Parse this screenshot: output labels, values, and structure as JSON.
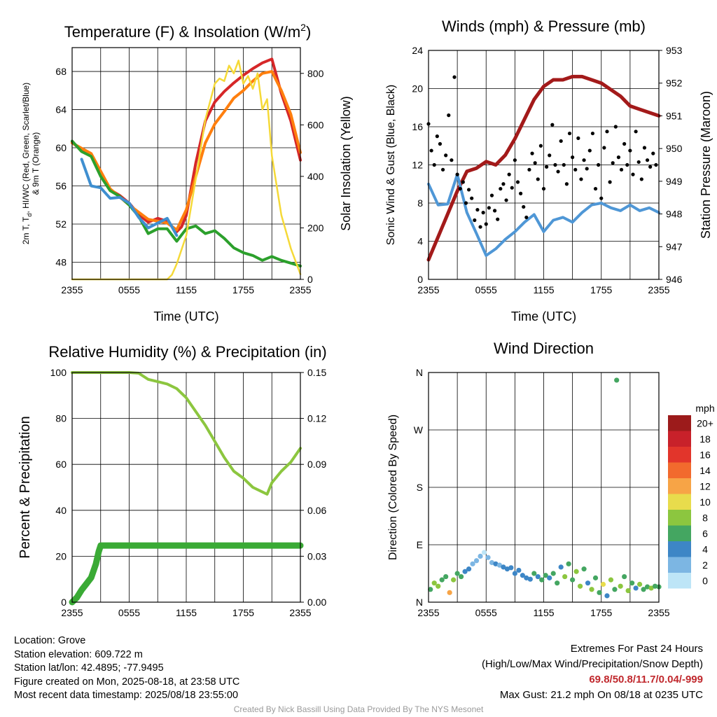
{
  "chart_data": [
    {
      "type": "line",
      "title": "Temperature (F) & Insolation (W/m",
      "title_sup": "2",
      "title_end": ")",
      "xlabel": "Time (UTC)",
      "ylabel_lines": [
        "2m T, T",
        "d",
        ", HI/WC (Red, Green, Scarlet/Blue)",
        "& 9m T (Orange)"
      ],
      "y2label": "Solar Insolation (Yellow)",
      "xtick_labels": [
        "2355",
        "0555",
        "1155",
        "1755",
        "2355"
      ],
      "x_range_hours": [
        0,
        24
      ],
      "ylim": [
        46.2,
        70.5
      ],
      "yticks": [
        48,
        52,
        56,
        60,
        64,
        68
      ],
      "y2lim": [
        0,
        900
      ],
      "y2ticks": [
        0,
        200,
        400,
        600,
        800
      ],
      "grid": true,
      "series": [
        {
          "color": "#d62728",
          "axis": "left",
          "x": [
            0,
            1,
            2,
            3,
            4,
            5,
            6,
            7,
            8,
            9,
            10,
            11,
            11.5,
            12,
            13,
            14,
            15,
            16,
            17,
            18,
            19,
            20,
            21,
            22,
            23,
            24
          ],
          "y": [
            60.6,
            59.7,
            59.3,
            57.2,
            55.6,
            55.0,
            54.2,
            53.0,
            52.2,
            52.6,
            52.3,
            51.2,
            51.7,
            52.9,
            58.4,
            62.8,
            64.8,
            65.9,
            66.8,
            67.6,
            68.3,
            68.9,
            69.3,
            65.7,
            62.8,
            58.7
          ]
        },
        {
          "color": "#ff7f0e",
          "axis": "left",
          "x": [
            0,
            2,
            4,
            6,
            8,
            10,
            11,
            12,
            13,
            14,
            15,
            16,
            17,
            18,
            19,
            20,
            21,
            22,
            23,
            24
          ],
          "y": [
            60.5,
            59.4,
            55.7,
            54.0,
            52.5,
            52.1,
            51.4,
            53.5,
            57.0,
            60.5,
            62.5,
            63.8,
            65.2,
            66.0,
            67.0,
            67.8,
            68.0,
            66.0,
            63.5,
            59.5
          ]
        },
        {
          "color": "#2ca02c",
          "axis": "left",
          "x": [
            0,
            1,
            2,
            3,
            4,
            5,
            6,
            7,
            8,
            9,
            10,
            11,
            12,
            13,
            14,
            15,
            16,
            17,
            18,
            19,
            20,
            21,
            22,
            23,
            24
          ],
          "y": [
            60.7,
            59.6,
            59.1,
            57.0,
            55.5,
            54.9,
            54.0,
            52.8,
            51.0,
            51.5,
            51.5,
            50.2,
            51.5,
            51.8,
            51.0,
            51.3,
            50.5,
            49.5,
            49.0,
            48.7,
            48.2,
            48.6,
            48.2,
            47.9,
            47.6
          ]
        },
        {
          "color": "#3f8fd0",
          "axis": "left",
          "x": [
            1,
            2,
            3,
            4,
            5,
            6,
            7,
            8,
            9,
            10,
            11
          ],
          "y": [
            58.8,
            56.0,
            55.8,
            54.7,
            54.8,
            54.2,
            52.7,
            51.6,
            52.1,
            52.6,
            50.8
          ]
        },
        {
          "color": "#f5d938",
          "axis": "right",
          "x": [
            0,
            8,
            9,
            10,
            10.5,
            11,
            12,
            13,
            14,
            15,
            15.5,
            16,
            16.5,
            17,
            17.5,
            18,
            18.5,
            19,
            19.5,
            20,
            20.5,
            21,
            22,
            23,
            24
          ],
          "y": [
            0,
            0,
            0,
            0,
            18,
            60,
            170,
            390,
            620,
            760,
            780,
            770,
            830,
            800,
            850,
            760,
            790,
            740,
            800,
            660,
            700,
            480,
            250,
            120,
            20
          ]
        }
      ]
    },
    {
      "type": "scatter",
      "title": "Winds (mph) & Pressure (mb)",
      "xlabel": "Time (UTC)",
      "ylabel": "Sonic Wind & Gust (Blue, Black)",
      "y2label": "Station Pressure (Maroon)",
      "xtick_labels": [
        "2355",
        "0555",
        "1155",
        "1755",
        "2355"
      ],
      "x_range_hours": [
        0,
        24
      ],
      "ylim": [
        0,
        24
      ],
      "yticks": [
        0,
        4,
        8,
        12,
        16,
        20,
        24
      ],
      "y2lim": [
        946,
        953
      ],
      "y2ticks": [
        946,
        947,
        948,
        949,
        950,
        951,
        952,
        953
      ],
      "grid": true,
      "series": [
        {
          "color": "#a31a1a",
          "axis": "right",
          "type": "line",
          "x": [
            0,
            1,
            2,
            3,
            4,
            5,
            6,
            7,
            8,
            9,
            10,
            11,
            12,
            13,
            14,
            15,
            16,
            17,
            18,
            19,
            20,
            21,
            22,
            23,
            24
          ],
          "y": [
            946.6,
            947.3,
            948.0,
            948.7,
            949.3,
            949.4,
            949.6,
            949.5,
            949.8,
            950.3,
            950.9,
            951.5,
            951.9,
            952.1,
            952.1,
            952.2,
            952.2,
            952.1,
            952.0,
            951.8,
            951.6,
            951.3,
            951.2,
            951.1,
            951.0
          ]
        },
        {
          "color": "#4f97d6",
          "axis": "left",
          "type": "line",
          "x": [
            0,
            1,
            2,
            3,
            4,
            5,
            6,
            7,
            8,
            9,
            10,
            11,
            12,
            13,
            14,
            15,
            16,
            17,
            18,
            19,
            20,
            21,
            22,
            23,
            24
          ],
          "y": [
            10.0,
            7.8,
            7.9,
            11.0,
            7.0,
            4.8,
            2.5,
            3.2,
            4.2,
            5.0,
            6.0,
            6.8,
            5.0,
            6.2,
            6.5,
            6.0,
            7.0,
            7.8,
            8.0,
            7.5,
            7.2,
            7.8,
            7.2,
            7.5,
            7.0
          ]
        },
        {
          "color": "#000000",
          "axis": "left",
          "type": "scatter",
          "x": [
            0,
            0.3,
            0.6,
            0.9,
            1.2,
            1.5,
            1.8,
            2.1,
            2.4,
            2.7,
            3.0,
            3.3,
            3.6,
            3.9,
            4.2,
            4.5,
            4.8,
            5.1,
            5.4,
            5.7,
            6.0,
            6.3,
            6.6,
            6.9,
            7.2,
            7.5,
            7.8,
            8.1,
            8.4,
            8.7,
            9.0,
            9.3,
            9.6,
            9.9,
            10.2,
            10.5,
            10.8,
            11.1,
            11.4,
            11.7,
            12.0,
            12.3,
            12.6,
            12.9,
            13.2,
            13.5,
            13.8,
            14.1,
            14.4,
            14.7,
            15.0,
            15.3,
            15.6,
            15.9,
            16.2,
            16.5,
            16.8,
            17.1,
            17.4,
            17.7,
            18.0,
            18.3,
            18.6,
            18.9,
            19.2,
            19.5,
            19.8,
            20.1,
            20.4,
            20.7,
            21.0,
            21.3,
            21.6,
            21.9,
            22.2,
            22.5,
            22.8,
            23.1,
            23.4,
            23.7
          ],
          "y": [
            16.3,
            13.5,
            12.0,
            15.0,
            14.2,
            11.5,
            13.0,
            17.2,
            12.5,
            21.2,
            11.0,
            9.5,
            10.2,
            8.0,
            9.4,
            8.5,
            6.2,
            7.3,
            5.5,
            7.0,
            5.8,
            7.5,
            8.8,
            7.2,
            6.3,
            9.5,
            10.0,
            8.3,
            11.0,
            9.6,
            12.5,
            10.2,
            9.0,
            7.6,
            6.5,
            11.5,
            13.2,
            12.2,
            10.5,
            14.0,
            9.5,
            11.8,
            13.0,
            16.2,
            12.0,
            11.3,
            14.5,
            12.0,
            10.0,
            15.3,
            12.8,
            11.5,
            14.8,
            10.5,
            12.5,
            11.6,
            13.5,
            15.3,
            9.5,
            12.0,
            8.5,
            13.8,
            15.5,
            10.2,
            12.2,
            16.0,
            12.8,
            11.5,
            14.2,
            12.0,
            13.5,
            11.0,
            15.5,
            12.3,
            10.5,
            13.8,
            12.5,
            11.8,
            13.2,
            12.0
          ]
        }
      ]
    },
    {
      "type": "line",
      "title": "Relative Humidity (%) & Precipitation (in)",
      "ylabel": "Percent & Precipitation",
      "xtick_labels": [
        "2355",
        "0555",
        "1155",
        "1755",
        "2355"
      ],
      "x_range_hours": [
        0,
        24
      ],
      "ylim": [
        0,
        100
      ],
      "yticks": [
        0,
        20,
        40,
        60,
        80,
        100
      ],
      "y2lim": [
        0,
        0.15
      ],
      "y2ticks": [
        "0.00",
        "0.03",
        "0.06",
        "0.09",
        "0.12",
        "0.15"
      ],
      "grid": true,
      "series": [
        {
          "color": "#8cc63f",
          "axis": "left",
          "x": [
            0,
            6,
            7,
            8,
            9,
            10,
            11,
            12,
            13,
            14,
            15,
            16,
            17,
            18,
            19,
            20,
            20.5,
            21,
            22,
            23,
            24
          ],
          "y": [
            100,
            100,
            99.7,
            97,
            96,
            95,
            93,
            89,
            83,
            77,
            70,
            63,
            57,
            54,
            50,
            48,
            47,
            52,
            57,
            61,
            67
          ]
        },
        {
          "color": "#3aaa35",
          "axis": "right",
          "x": [
            0,
            0.5,
            1,
            1.5,
            2,
            2.5,
            2.8,
            3,
            24
          ],
          "y": [
            0,
            0.003,
            0.008,
            0.012,
            0.016,
            0.025,
            0.033,
            0.037,
            0.037
          ]
        }
      ]
    },
    {
      "type": "scatter",
      "title": "Wind Direction",
      "ylabel": "Direction (Colored By Speed)",
      "xtick_labels": [
        "2355",
        "0555",
        "1155",
        "1755",
        "2355"
      ],
      "x_range_hours": [
        0,
        24
      ],
      "ylim": [
        0,
        360
      ],
      "ytick_labels": [
        "N",
        "E",
        "S",
        "W",
        "N"
      ],
      "colorbar": {
        "unit": "mph",
        "labels": [
          "20+",
          "18",
          "16",
          "14",
          "12",
          "10",
          "8",
          "6",
          "4",
          "2",
          "0"
        ],
        "colors": [
          "#9c1b1b",
          "#c8212a",
          "#e2352b",
          "#f26a2d",
          "#f7a446",
          "#e8dc4c",
          "#8cc63f",
          "#44a661",
          "#3d86c6",
          "#7cb6e3",
          "#bde5f7"
        ]
      },
      "points": [
        {
          "x": 0.2,
          "y": 20,
          "speed": 6
        },
        {
          "x": 0.6,
          "y": 30,
          "speed": 8
        },
        {
          "x": 1.0,
          "y": 25,
          "speed": 9
        },
        {
          "x": 1.4,
          "y": 35,
          "speed": 7
        },
        {
          "x": 1.8,
          "y": 40,
          "speed": 6
        },
        {
          "x": 2.2,
          "y": 15,
          "speed": 12
        },
        {
          "x": 2.6,
          "y": 35,
          "speed": 8
        },
        {
          "x": 3.0,
          "y": 45,
          "speed": 7
        },
        {
          "x": 3.4,
          "y": 40,
          "speed": 6
        },
        {
          "x": 3.8,
          "y": 48,
          "speed": 5
        },
        {
          "x": 4.2,
          "y": 52,
          "speed": 4
        },
        {
          "x": 4.6,
          "y": 60,
          "speed": 3
        },
        {
          "x": 5.0,
          "y": 65,
          "speed": 2
        },
        {
          "x": 5.4,
          "y": 72,
          "speed": 2
        },
        {
          "x": 5.8,
          "y": 78,
          "speed": 1
        },
        {
          "x": 6.2,
          "y": 70,
          "speed": 2
        },
        {
          "x": 6.6,
          "y": 62,
          "speed": 3
        },
        {
          "x": 7.0,
          "y": 60,
          "speed": 4
        },
        {
          "x": 7.4,
          "y": 58,
          "speed": 3
        },
        {
          "x": 7.8,
          "y": 55,
          "speed": 4
        },
        {
          "x": 8.2,
          "y": 52,
          "speed": 5
        },
        {
          "x": 8.6,
          "y": 54,
          "speed": 4
        },
        {
          "x": 9.0,
          "y": 45,
          "speed": 4
        },
        {
          "x": 9.4,
          "y": 50,
          "speed": 5
        },
        {
          "x": 9.8,
          "y": 42,
          "speed": 4
        },
        {
          "x": 10.2,
          "y": 38,
          "speed": 5
        },
        {
          "x": 10.6,
          "y": 36,
          "speed": 4
        },
        {
          "x": 11.0,
          "y": 45,
          "speed": 6
        },
        {
          "x": 11.4,
          "y": 40,
          "speed": 5
        },
        {
          "x": 11.8,
          "y": 35,
          "speed": 6
        },
        {
          "x": 12.2,
          "y": 42,
          "speed": 7
        },
        {
          "x": 12.6,
          "y": 38,
          "speed": 5
        },
        {
          "x": 13.0,
          "y": 45,
          "speed": 6
        },
        {
          "x": 13.4,
          "y": 30,
          "speed": 7
        },
        {
          "x": 13.8,
          "y": 55,
          "speed": 5
        },
        {
          "x": 14.2,
          "y": 40,
          "speed": 8
        },
        {
          "x": 14.6,
          "y": 60,
          "speed": 7
        },
        {
          "x": 15.0,
          "y": 35,
          "speed": 6
        },
        {
          "x": 15.4,
          "y": 48,
          "speed": 9
        },
        {
          "x": 15.8,
          "y": 25,
          "speed": 8
        },
        {
          "x": 16.2,
          "y": 52,
          "speed": 6
        },
        {
          "x": 16.6,
          "y": 30,
          "speed": 4
        },
        {
          "x": 17.0,
          "y": 20,
          "speed": 9
        },
        {
          "x": 17.4,
          "y": 38,
          "speed": 7
        },
        {
          "x": 17.8,
          "y": 15,
          "speed": 6
        },
        {
          "x": 18.2,
          "y": 28,
          "speed": 10
        },
        {
          "x": 18.6,
          "y": 10,
          "speed": 4
        },
        {
          "x": 19.0,
          "y": 35,
          "speed": 8
        },
        {
          "x": 19.4,
          "y": 20,
          "speed": 7
        },
        {
          "x": 19.6,
          "y": 348,
          "speed": 6
        },
        {
          "x": 20.0,
          "y": 25,
          "speed": 9
        },
        {
          "x": 20.4,
          "y": 40,
          "speed": 6
        },
        {
          "x": 20.8,
          "y": 18,
          "speed": 8
        },
        {
          "x": 21.2,
          "y": 30,
          "speed": 7
        },
        {
          "x": 21.6,
          "y": 22,
          "speed": 5
        },
        {
          "x": 22.0,
          "y": 28,
          "speed": 8
        },
        {
          "x": 22.4,
          "y": 20,
          "speed": 6
        },
        {
          "x": 22.8,
          "y": 24,
          "speed": 7
        },
        {
          "x": 23.2,
          "y": 22,
          "speed": 8
        },
        {
          "x": 23.6,
          "y": 25,
          "speed": 6
        },
        {
          "x": 24.0,
          "y": 24,
          "speed": 7
        }
      ]
    }
  ],
  "footer": {
    "location": "Location: Grove",
    "elevation": "Station elevation: 609.722 m",
    "latlon": "Station lat/lon: 42.4895; -77.9495",
    "created": "Figure created on Mon, 2025-08-18, at 23:58 UTC",
    "recent": "Most recent data timestamp: 2025/08/18 23:55:00",
    "extremes_title": "Extremes For Past 24 Hours",
    "extremes_desc": "(High/Low/Max Wind/Precipitation/Snow Depth)",
    "extremes_values": "69.8/50.8/11.7/0.04/-999",
    "max_gust": "Max Gust: 21.2 mph On 08/18 at 0235 UTC",
    "credit": "Created By Nick Bassill Using Data Provided By The NYS Mesonet"
  }
}
